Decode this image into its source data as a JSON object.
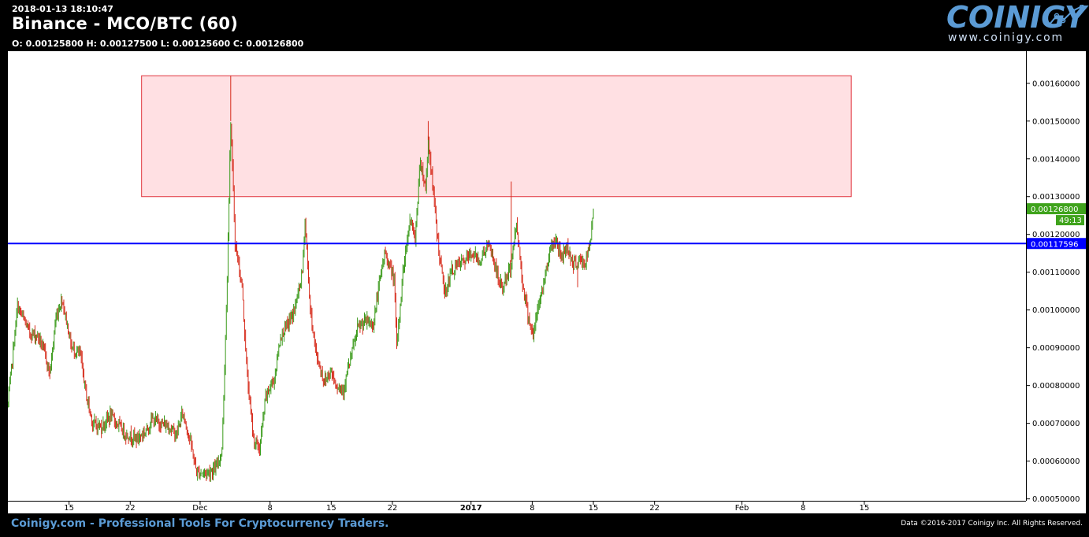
{
  "header": {
    "timestamp": "2018-01-13 18:10:47",
    "title": "Binance - MCO/BTC (60)",
    "ohlc": "O: 0.00125800 H: 0.00127500 L: 0.00125600 C: 0.00126800"
  },
  "logo": {
    "text": "COINIGY",
    "url": "www.coinigy.com"
  },
  "footer": {
    "tagline": "Coinigy.com - Professional Tools For Cryptocurrency Traders.",
    "copyright": "Data ©2016-2017 Coinigy Inc. All Rights Reserved."
  },
  "colors": {
    "up": "#3a9a1a",
    "down": "#d62a1a",
    "hline": "#0000ff",
    "zone_fill": "#ffe0e3",
    "zone_stroke": "#e0363f",
    "price_tag": "#3fa31c"
  },
  "chart_data": {
    "type": "candlestick",
    "y_ticks": [
      "0.00050000",
      "0.00060000",
      "0.00070000",
      "0.00080000",
      "0.00090000",
      "0.00100000",
      "0.00110000",
      "0.00120000",
      "0.00130000",
      "0.00140000",
      "0.00150000",
      "0.00160000"
    ],
    "x_ticks": [
      {
        "label": "15",
        "day": 15
      },
      {
        "label": "22",
        "day": 22
      },
      {
        "label": "Dec",
        "day": 30
      },
      {
        "label": "8",
        "day": 38
      },
      {
        "label": "15",
        "day": 45
      },
      {
        "label": "22",
        "day": 52
      },
      {
        "label": "2017",
        "day": 61
      },
      {
        "label": "8",
        "day": 68
      },
      {
        "label": "15",
        "day": 75
      },
      {
        "label": "22",
        "day": 82
      },
      {
        "label": "Feb",
        "day": 92
      },
      {
        "label": "8",
        "day": 99
      },
      {
        "label": "15",
        "day": 106
      }
    ],
    "ylim": [
      0.000495,
      0.001685
    ],
    "xlim": [
      8.0,
      124.5
    ],
    "current_price": "0.00126800",
    "countdown": "49:13",
    "horizontal_line": {
      "value": 0.00117596,
      "label": "0.00117596"
    },
    "resistance_zone": {
      "day_start": 23.3,
      "day_end": 104.5,
      "low": 0.0013,
      "high": 0.00162
    },
    "price_path": [
      [
        8.0,
        0.00075
      ],
      [
        9.1,
        0.00101
      ],
      [
        10.5,
        0.00094
      ],
      [
        11.5,
        0.00093
      ],
      [
        12.3,
        0.00088
      ],
      [
        12.8,
        0.00083
      ],
      [
        13.5,
        0.00098
      ],
      [
        14.2,
        0.00103
      ],
      [
        15.3,
        0.0009
      ],
      [
        16.3,
        0.00088
      ],
      [
        17.0,
        0.00077
      ],
      [
        17.7,
        0.0007
      ],
      [
        18.7,
        0.00069
      ],
      [
        19.7,
        0.00072
      ],
      [
        20.5,
        0.0007
      ],
      [
        21.5,
        0.00067
      ],
      [
        22.8,
        0.00066
      ],
      [
        23.8,
        0.00068
      ],
      [
        24.5,
        0.00071
      ],
      [
        25.5,
        0.0007
      ],
      [
        26.5,
        0.00069
      ],
      [
        27.3,
        0.00067
      ],
      [
        28.0,
        0.00073
      ],
      [
        28.9,
        0.00065
      ],
      [
        29.6,
        0.00057
      ],
      [
        30.8,
        0.00057
      ],
      [
        31.8,
        0.00058
      ],
      [
        32.5,
        0.00063
      ],
      [
        33.0,
        0.001
      ],
      [
        33.5,
        0.0015
      ],
      [
        34.0,
        0.00118
      ],
      [
        34.8,
        0.00106
      ],
      [
        35.4,
        0.00082
      ],
      [
        36.1,
        0.00066
      ],
      [
        36.8,
        0.00063
      ],
      [
        37.5,
        0.00077
      ],
      [
        38.5,
        0.00082
      ],
      [
        39.2,
        0.00093
      ],
      [
        40.0,
        0.00096
      ],
      [
        40.8,
        0.001
      ],
      [
        41.7,
        0.0011
      ],
      [
        42.0,
        0.00124
      ],
      [
        42.6,
        0.001
      ],
      [
        43.3,
        0.00088
      ],
      [
        44.2,
        0.00081
      ],
      [
        45.0,
        0.00084
      ],
      [
        45.6,
        0.0008
      ],
      [
        46.4,
        0.00079
      ],
      [
        47.2,
        0.00087
      ],
      [
        48.0,
        0.00095
      ],
      [
        49.0,
        0.00097
      ],
      [
        49.8,
        0.00096
      ],
      [
        50.5,
        0.00107
      ],
      [
        51.1,
        0.00115
      ],
      [
        51.5,
        0.00113
      ],
      [
        52.2,
        0.00108
      ],
      [
        52.5,
        0.0009
      ],
      [
        53.2,
        0.0011
      ],
      [
        54.0,
        0.00124
      ],
      [
        54.6,
        0.00119
      ],
      [
        55.2,
        0.0014
      ],
      [
        55.8,
        0.00132
      ],
      [
        56.1,
        0.00145
      ],
      [
        56.6,
        0.00133
      ],
      [
        57.3,
        0.00116
      ],
      [
        58.0,
        0.00104
      ],
      [
        58.7,
        0.0011
      ],
      [
        59.5,
        0.00112
      ],
      [
        60.3,
        0.00113
      ],
      [
        61.1,
        0.00115
      ],
      [
        62.0,
        0.00113
      ],
      [
        62.8,
        0.00117
      ],
      [
        63.4,
        0.00115
      ],
      [
        64.1,
        0.00108
      ],
      [
        64.6,
        0.00106
      ],
      [
        65.5,
        0.00111
      ],
      [
        66.2,
        0.00123
      ],
      [
        66.9,
        0.00107
      ],
      [
        67.5,
        0.00099
      ],
      [
        68.1,
        0.00093
      ],
      [
        68.7,
        0.00101
      ],
      [
        69.4,
        0.00108
      ],
      [
        70.0,
        0.00116
      ],
      [
        70.7,
        0.00119
      ],
      [
        71.3,
        0.00114
      ],
      [
        72.0,
        0.00117
      ],
      [
        72.7,
        0.00112
      ],
      [
        73.4,
        0.00113
      ],
      [
        74.0,
        0.00112
      ],
      [
        74.6,
        0.00117
      ],
      [
        75.0,
        0.00126
      ]
    ],
    "spikes": [
      [
        33.5,
        0.00162
      ],
      [
        56.1,
        0.0015
      ],
      [
        65.6,
        0.00134
      ],
      [
        73.2,
        0.00106
      ]
    ]
  }
}
